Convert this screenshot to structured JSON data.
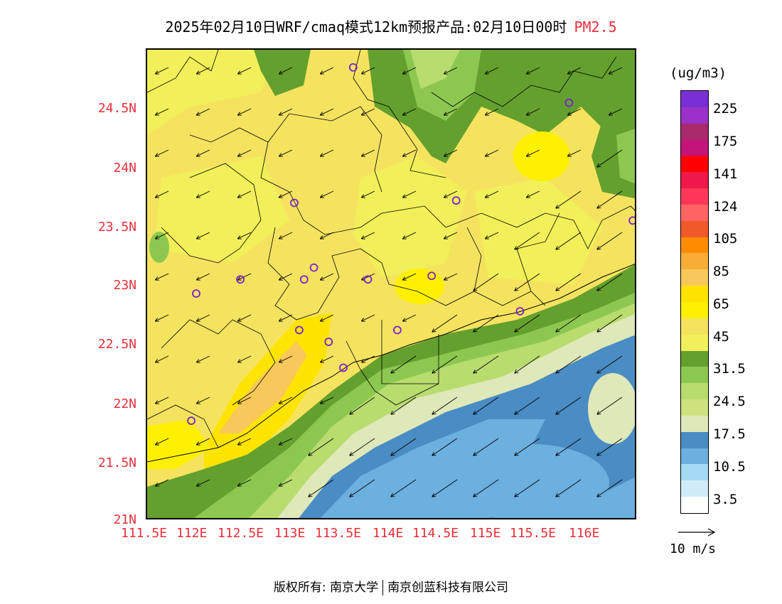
{
  "title": {
    "text": "2025年02月10日WRF/cmaq模式12km预报产品:02月10日00时",
    "pollutant": "PM2.5"
  },
  "map": {
    "lat_labels": [
      "24.5N",
      "24N",
      "23.5N",
      "23N",
      "22.5N",
      "22N",
      "21.5N",
      "21N"
    ],
    "lon_labels": [
      "111.5E",
      "112E",
      "112.5E",
      "113E",
      "113.5E",
      "114E",
      "114.5E",
      "115E",
      "115.5E",
      "116E"
    ],
    "lon_range": [
      111.5,
      116.5
    ],
    "lat_range": [
      21.0,
      25.0
    ],
    "wind_direction": "northeasterly",
    "stations": [
      {
        "lon": 113.6,
        "lat": 24.85
      },
      {
        "lon": 115.8,
        "lat": 24.55
      },
      {
        "lon": 113.0,
        "lat": 23.7
      },
      {
        "lon": 114.65,
        "lat": 23.72
      },
      {
        "lon": 116.45,
        "lat": 23.55
      },
      {
        "lon": 112.45,
        "lat": 23.05
      },
      {
        "lon": 113.2,
        "lat": 23.15
      },
      {
        "lon": 113.1,
        "lat": 23.05
      },
      {
        "lon": 113.75,
        "lat": 23.05
      },
      {
        "lon": 114.4,
        "lat": 23.08
      },
      {
        "lon": 112.0,
        "lat": 22.93
      },
      {
        "lon": 115.3,
        "lat": 22.78
      },
      {
        "lon": 113.05,
        "lat": 22.62
      },
      {
        "lon": 113.35,
        "lat": 22.52
      },
      {
        "lon": 114.05,
        "lat": 22.62
      },
      {
        "lon": 113.5,
        "lat": 22.3
      },
      {
        "lon": 111.95,
        "lat": 21.85
      }
    ]
  },
  "colorbar": {
    "unit": "(ug/m3)",
    "labels": [
      "225",
      "175",
      "141",
      "124",
      "105",
      "85",
      "65",
      "45",
      "31.5",
      "24.5",
      "17.5",
      "10.5",
      "3.5"
    ],
    "colors": [
      "#7a2fd6",
      "#9a32c8",
      "#a82a6a",
      "#c4147a",
      "#ff0000",
      "#f0184a",
      "#ff3858",
      "#ff6464",
      "#f05a28",
      "#ff8c00",
      "#f8ae36",
      "#f8c85a",
      "#ffe400",
      "#fff000",
      "#f5e360",
      "#f2f05a",
      "#64a02e",
      "#8cc850",
      "#b9dc6e",
      "#cce27e",
      "#dee8b8",
      "#4a8cc4",
      "#6cb0e0",
      "#a4daf4",
      "#d0ecf8",
      "#ffffff"
    ]
  },
  "wind_legend": {
    "label": "10 m/s"
  },
  "footer": {
    "left": "版权所有: 南京大学",
    "right": "南京创蓝科技有限公司"
  }
}
